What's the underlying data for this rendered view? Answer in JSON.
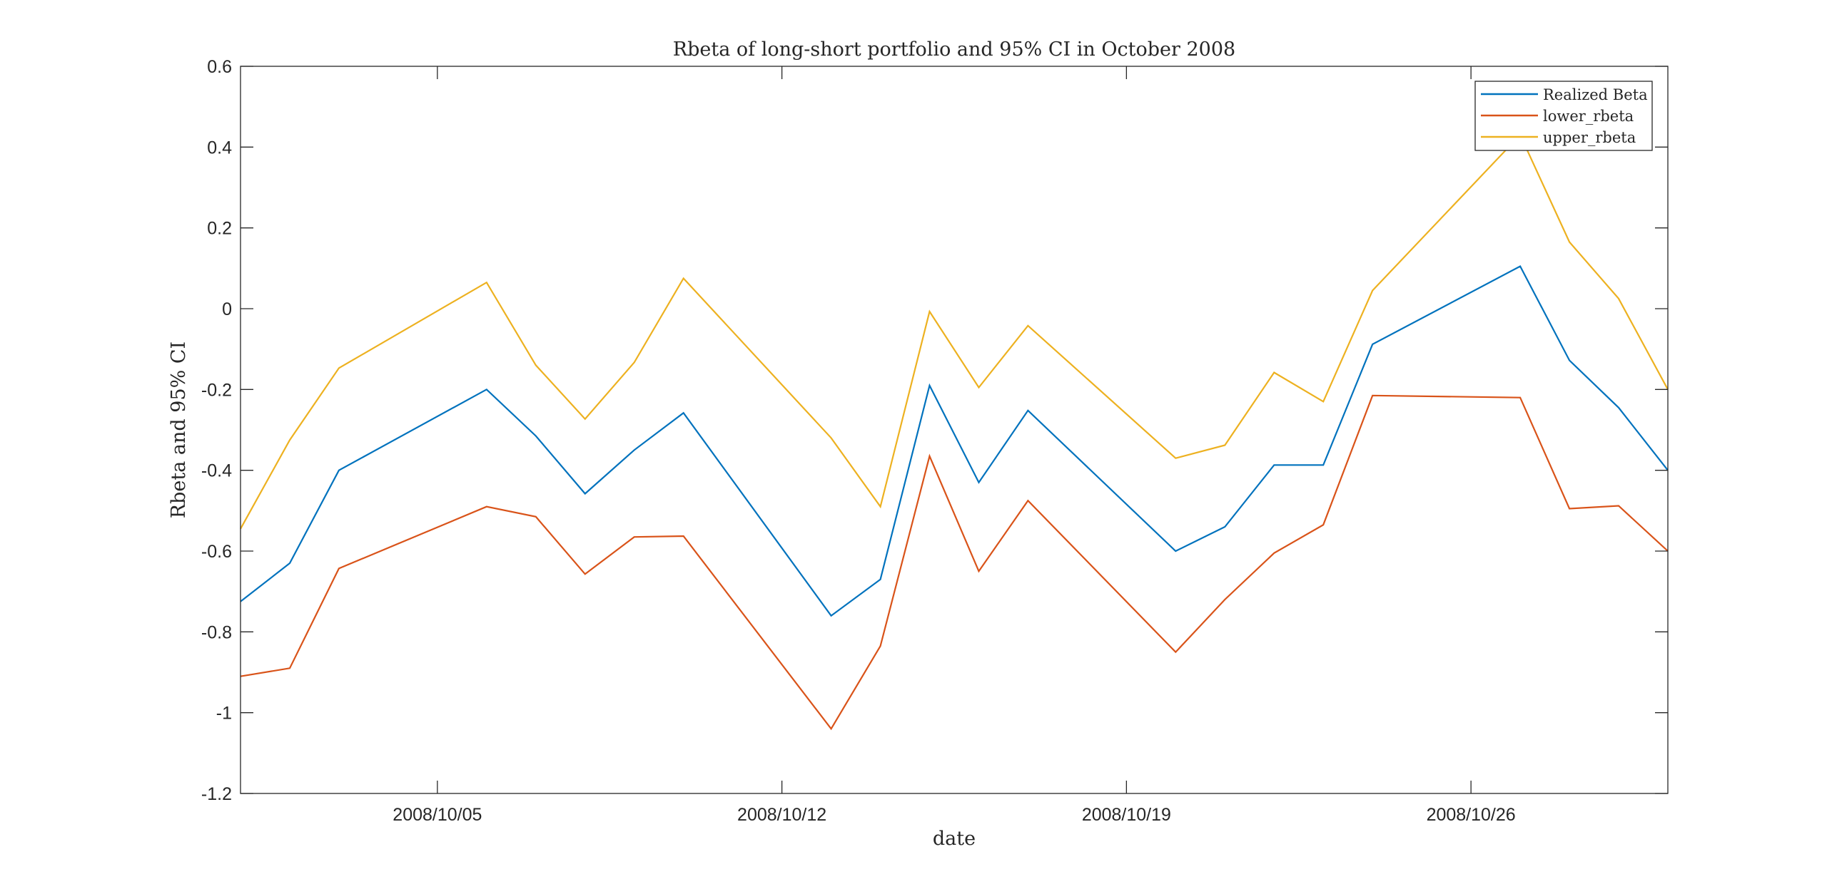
{
  "chart_data": {
    "type": "line",
    "title": "Rbeta of long-short portfolio and 95% CI in October 2008",
    "xlabel": "date",
    "ylabel": "Rbeta and 95% CI",
    "x": [
      "2008/10/01",
      "2008/10/02",
      "2008/10/03",
      "2008/10/06",
      "2008/10/07",
      "2008/10/08",
      "2008/10/09",
      "2008/10/10",
      "2008/10/13",
      "2008/10/14",
      "2008/10/15",
      "2008/10/16",
      "2008/10/17",
      "2008/10/20",
      "2008/10/21",
      "2008/10/22",
      "2008/10/23",
      "2008/10/24",
      "2008/10/27",
      "2008/10/28",
      "2008/10/29",
      "2008/10/30"
    ],
    "xlim": [
      "2008/10/01",
      "2008/10/30"
    ],
    "xticks": [
      "2008/10/05",
      "2008/10/12",
      "2008/10/19",
      "2008/10/26"
    ],
    "ylim": [
      -1.2,
      0.6
    ],
    "yticks": [
      "-1.2",
      "-1",
      "-0.8",
      "-0.6",
      "-0.4",
      "-0.2",
      "0",
      "0.2",
      "0.4",
      "0.6"
    ],
    "grid": false,
    "legend_position": "top-right",
    "series": [
      {
        "name": "Realized Beta",
        "color": "#0072BD",
        "values": [
          -0.725,
          -0.63,
          -0.4,
          -0.2,
          -0.315,
          -0.458,
          -0.35,
          -0.258,
          -0.76,
          -0.67,
          -0.19,
          -0.43,
          -0.252,
          -0.6,
          -0.54,
          -0.387,
          -0.387,
          -0.088,
          0.105,
          -0.128,
          -0.245,
          -0.4
        ]
      },
      {
        "name": "lower_rbeta",
        "color": "#D95319",
        "values": [
          -0.91,
          -0.89,
          -0.643,
          -0.49,
          -0.515,
          -0.657,
          -0.565,
          -0.563,
          -1.04,
          -0.835,
          -0.365,
          -0.65,
          -0.475,
          -0.85,
          -0.72,
          -0.605,
          -0.535,
          -0.215,
          -0.22,
          -0.495,
          -0.488,
          -0.6
        ]
      },
      {
        "name": "upper_rbeta",
        "color": "#EDB120",
        "values": [
          -0.545,
          -0.325,
          -0.147,
          0.065,
          -0.14,
          -0.273,
          -0.133,
          0.075,
          -0.32,
          -0.49,
          -0.007,
          -0.195,
          -0.042,
          -0.37,
          -0.338,
          -0.158,
          -0.23,
          0.045,
          0.43,
          0.165,
          0.025,
          -0.2
        ]
      }
    ]
  }
}
